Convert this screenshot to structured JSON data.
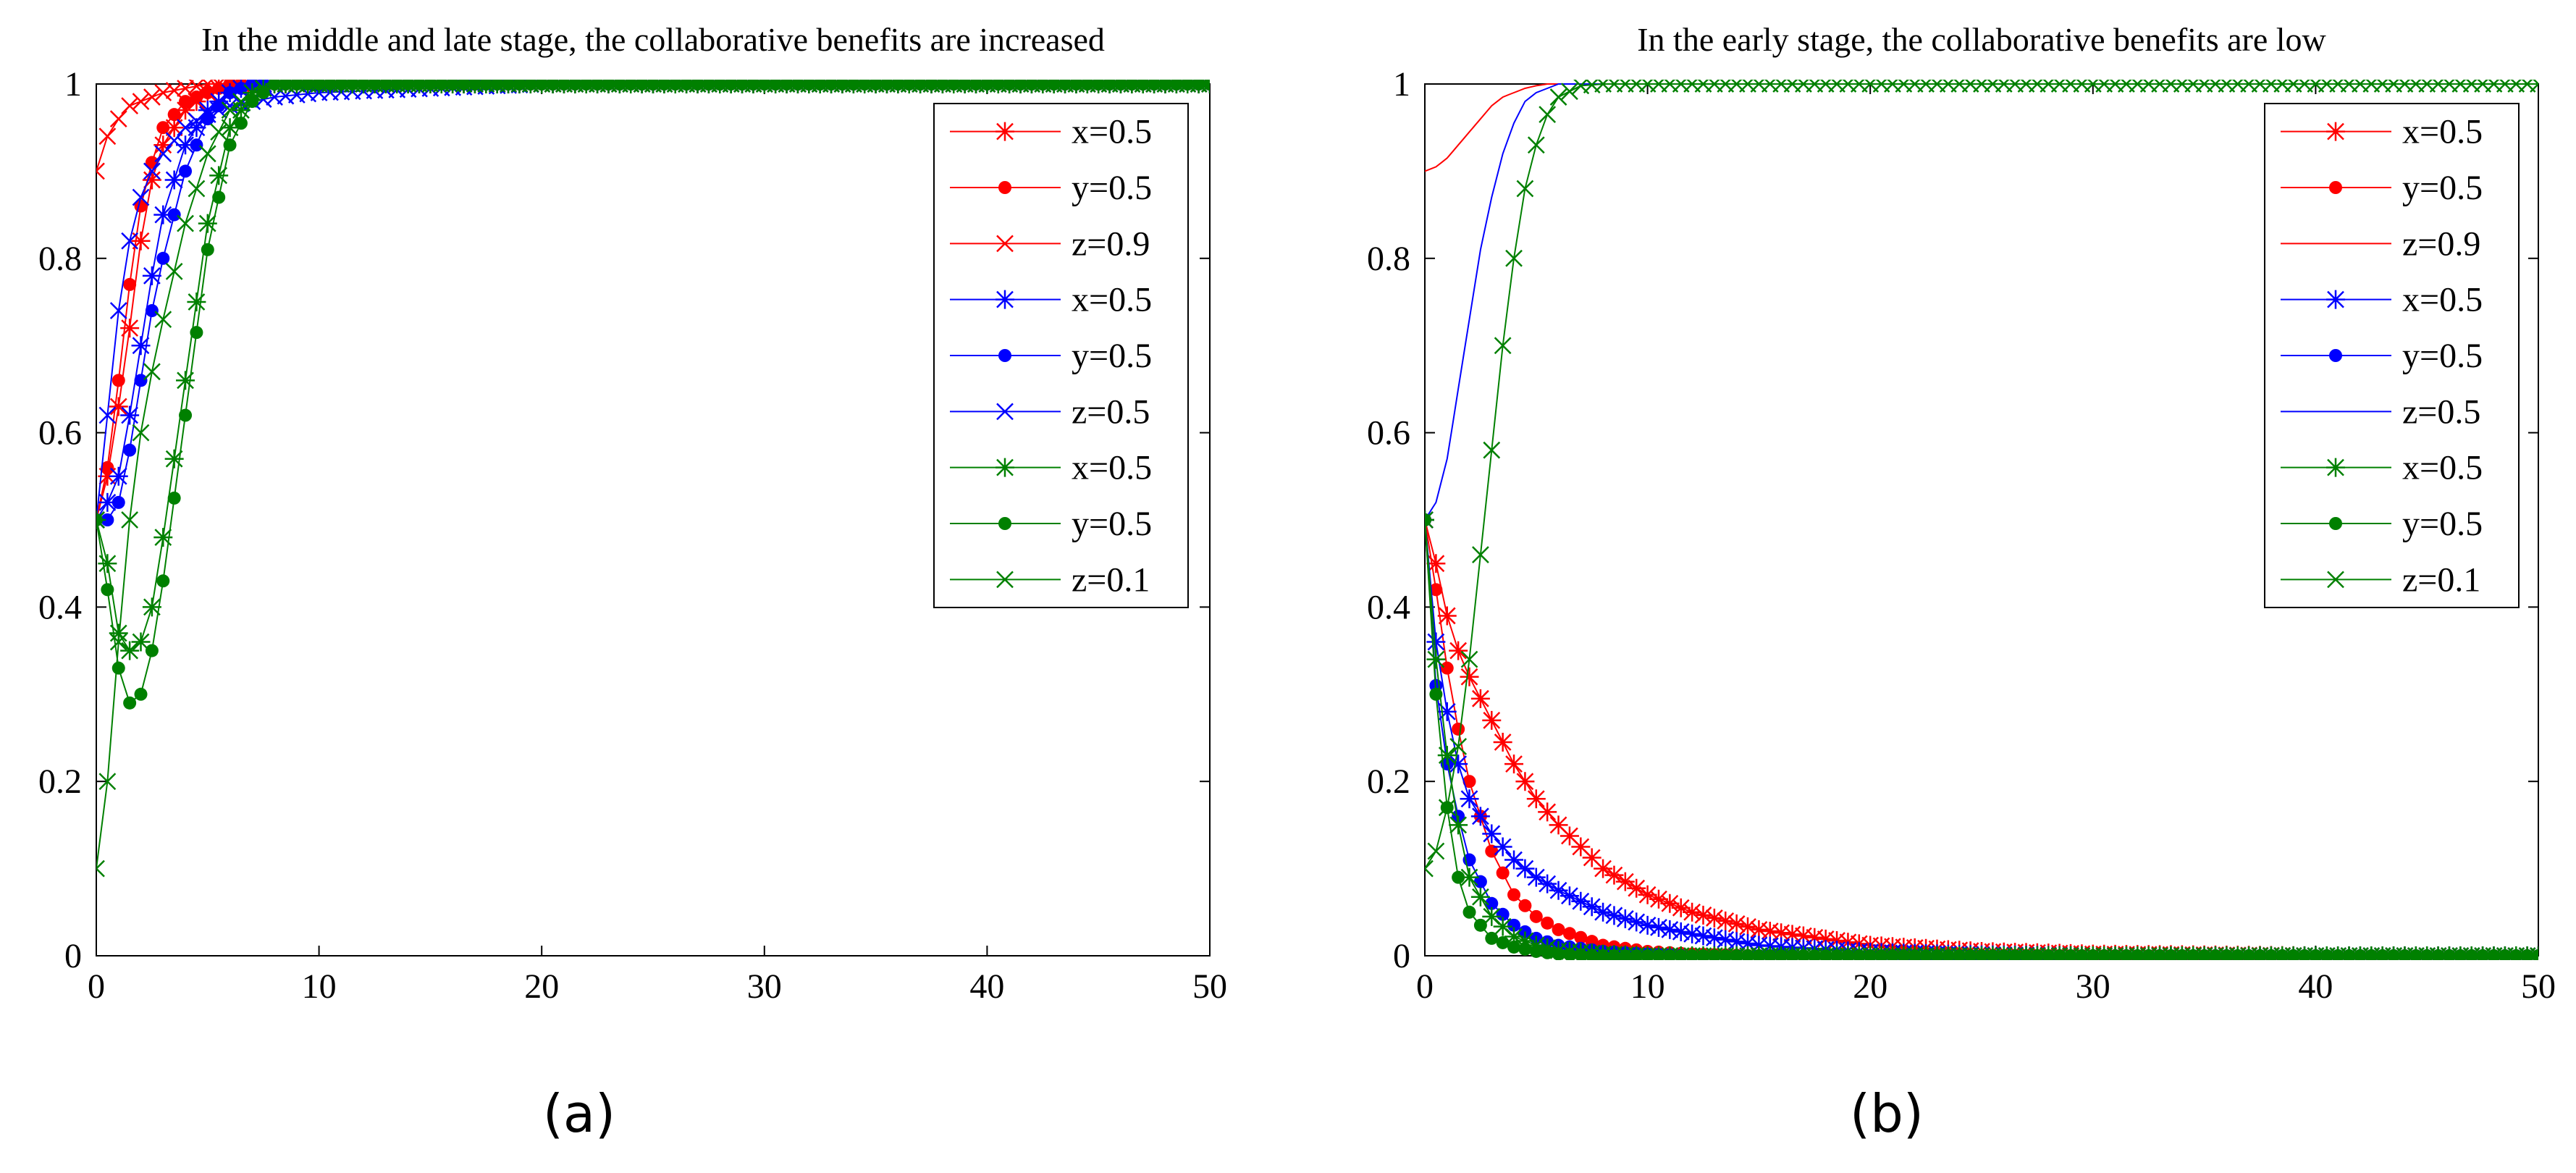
{
  "figure": {
    "subplot_labels": [
      "(a)",
      "(b)"
    ]
  },
  "chart_data": [
    {
      "type": "line",
      "title": "In the middle and late stage, the collaborative benefits are increased",
      "xlabel": "",
      "ylabel": "",
      "xlim": [
        0,
        50
      ],
      "ylim": [
        0,
        1
      ],
      "xticks": [
        0,
        10,
        20,
        30,
        40,
        50
      ],
      "yticks": [
        0,
        0.2,
        0.4,
        0.6,
        0.8,
        1
      ],
      "ytick_labels": [
        "0",
        "0.2",
        "0.4",
        "0.6",
        "0.8",
        "1"
      ],
      "legend_position": "top-right",
      "series": [
        {
          "name": "x=0.5",
          "color": "#ff0000",
          "marker": "asterisk",
          "x": [
            0,
            0.5,
            1,
            1.5,
            2,
            2.5,
            3,
            4,
            5,
            6,
            7,
            8,
            10,
            15,
            20,
            30,
            40,
            50
          ],
          "values": [
            0.5,
            0.55,
            0.63,
            0.72,
            0.82,
            0.89,
            0.93,
            0.97,
            0.99,
            1,
            1,
            1,
            1,
            1,
            1,
            1,
            1,
            1
          ]
        },
        {
          "name": "y=0.5",
          "color": "#ff0000",
          "marker": "dot",
          "x": [
            0,
            0.5,
            1,
            1.5,
            2,
            2.5,
            3,
            4,
            5,
            6,
            7,
            8,
            10,
            15,
            20,
            30,
            40,
            50
          ],
          "values": [
            0.5,
            0.56,
            0.66,
            0.77,
            0.86,
            0.91,
            0.95,
            0.98,
            0.99,
            1,
            1,
            1,
            1,
            1,
            1,
            1,
            1,
            1
          ]
        },
        {
          "name": "z=0.9",
          "color": "#ff0000",
          "marker": "x",
          "x": [
            0,
            0.5,
            1,
            1.5,
            2,
            2.5,
            3,
            4,
            5,
            6,
            7,
            8,
            10,
            15,
            20,
            30,
            40,
            50
          ],
          "values": [
            0.9,
            0.94,
            0.96,
            0.975,
            0.98,
            0.985,
            0.99,
            0.995,
            1,
            1,
            1,
            1,
            1,
            1,
            1,
            1,
            1,
            1
          ]
        },
        {
          "name": "x=0.5",
          "color": "#0000ff",
          "marker": "asterisk",
          "x": [
            0,
            0.5,
            1,
            1.5,
            2,
            2.5,
            3,
            4,
            5,
            6,
            7,
            8,
            10,
            15,
            20,
            30,
            40,
            50
          ],
          "values": [
            0.5,
            0.52,
            0.55,
            0.62,
            0.7,
            0.78,
            0.85,
            0.93,
            0.97,
            0.99,
            1,
            1,
            1,
            1,
            1,
            1,
            1,
            1
          ]
        },
        {
          "name": "y=0.5",
          "color": "#0000ff",
          "marker": "dot",
          "x": [
            0,
            0.5,
            1,
            1.5,
            2,
            2.5,
            3,
            4,
            5,
            6,
            7,
            8,
            10,
            15,
            20,
            30,
            40,
            50
          ],
          "values": [
            0.5,
            0.5,
            0.52,
            0.58,
            0.66,
            0.74,
            0.8,
            0.9,
            0.96,
            0.99,
            1,
            1,
            1,
            1,
            1,
            1,
            1,
            1
          ]
        },
        {
          "name": "z=0.5",
          "color": "#0000ff",
          "marker": "x",
          "x": [
            0,
            0.5,
            1,
            1.5,
            2,
            2.5,
            3,
            4,
            5,
            6,
            7,
            8,
            10,
            15,
            20,
            30,
            40,
            50
          ],
          "values": [
            0.5,
            0.62,
            0.74,
            0.82,
            0.87,
            0.9,
            0.92,
            0.95,
            0.965,
            0.975,
            0.98,
            0.985,
            0.99,
            0.995,
            1,
            1,
            1,
            1
          ]
        },
        {
          "name": "x=0.5",
          "color": "#008000",
          "marker": "asterisk",
          "x": [
            0,
            0.5,
            1,
            1.5,
            2,
            2.5,
            3,
            4,
            5,
            6,
            7,
            8,
            10,
            15,
            20,
            30,
            40,
            50
          ],
          "values": [
            0.5,
            0.45,
            0.37,
            0.35,
            0.36,
            0.4,
            0.48,
            0.66,
            0.84,
            0.95,
            0.99,
            1,
            1,
            1,
            1,
            1,
            1,
            1
          ]
        },
        {
          "name": "y=0.5",
          "color": "#008000",
          "marker": "dot",
          "x": [
            0,
            0.5,
            1,
            1.5,
            2,
            2.5,
            3,
            4,
            5,
            6,
            7,
            8,
            10,
            15,
            20,
            30,
            40,
            50
          ],
          "values": [
            0.5,
            0.42,
            0.33,
            0.29,
            0.3,
            0.35,
            0.43,
            0.62,
            0.81,
            0.93,
            0.98,
            1,
            1,
            1,
            1,
            1,
            1,
            1
          ]
        },
        {
          "name": "z=0.1",
          "color": "#008000",
          "marker": "x",
          "x": [
            0,
            0.5,
            1,
            1.5,
            2,
            2.5,
            3,
            4,
            5,
            6,
            7,
            8,
            10,
            15,
            20,
            30,
            40,
            50
          ],
          "values": [
            0.1,
            0.2,
            0.36,
            0.5,
            0.6,
            0.67,
            0.73,
            0.84,
            0.92,
            0.97,
            0.99,
            1,
            1,
            1,
            1,
            1,
            1,
            1
          ]
        }
      ]
    },
    {
      "type": "line",
      "title": "In the early stage, the collaborative benefits are low",
      "xlabel": "",
      "ylabel": "",
      "xlim": [
        0,
        50
      ],
      "ylim": [
        0,
        1
      ],
      "xticks": [
        0,
        10,
        20,
        30,
        40,
        50
      ],
      "yticks": [
        0,
        0.2,
        0.4,
        0.6,
        0.8,
        1
      ],
      "ytick_labels": [
        "0",
        "0.2",
        "0.4",
        "0.6",
        "0.8",
        "1"
      ],
      "legend_position": "top-right",
      "series": [
        {
          "name": "x=0.5",
          "color": "#ff0000",
          "marker": "asterisk",
          "x": [
            0,
            0.5,
            1,
            1.5,
            2,
            3,
            4,
            5,
            6,
            8,
            10,
            12,
            15,
            20,
            25,
            30,
            40,
            50
          ],
          "values": [
            0.5,
            0.45,
            0.39,
            0.35,
            0.32,
            0.27,
            0.22,
            0.18,
            0.15,
            0.1,
            0.07,
            0.05,
            0.03,
            0.012,
            0.005,
            0.002,
            0,
            0
          ]
        },
        {
          "name": "y=0.5",
          "color": "#ff0000",
          "marker": "dot",
          "x": [
            0,
            0.5,
            1,
            1.5,
            2,
            3,
            4,
            5,
            6,
            8,
            10,
            12,
            15,
            20,
            25,
            30,
            40,
            50
          ],
          "values": [
            0.5,
            0.42,
            0.33,
            0.26,
            0.2,
            0.12,
            0.07,
            0.045,
            0.03,
            0.012,
            0.005,
            0.002,
            0,
            0,
            0,
            0,
            0,
            0
          ]
        },
        {
          "name": "z=0.9",
          "color": "#ff0000",
          "marker": "none",
          "x": [
            0,
            0.5,
            1,
            1.5,
            2,
            2.5,
            3,
            3.5,
            4,
            4.5,
            5,
            5.5,
            6,
            8,
            10,
            20,
            30,
            40,
            50
          ],
          "values": [
            0.9,
            0.905,
            0.915,
            0.93,
            0.945,
            0.96,
            0.975,
            0.985,
            0.99,
            0.995,
            0.998,
            1,
            1,
            1,
            1,
            1,
            1,
            1,
            1
          ]
        },
        {
          "name": "x=0.5",
          "color": "#0000ff",
          "marker": "asterisk",
          "x": [
            0,
            0.5,
            1,
            1.5,
            2,
            3,
            4,
            5,
            6,
            8,
            10,
            12,
            15,
            20,
            25,
            30,
            40,
            50
          ],
          "values": [
            0.5,
            0.36,
            0.28,
            0.22,
            0.18,
            0.14,
            0.11,
            0.09,
            0.075,
            0.05,
            0.035,
            0.025,
            0.012,
            0.004,
            0.001,
            0,
            0,
            0
          ]
        },
        {
          "name": "y=0.5",
          "color": "#0000ff",
          "marker": "dot",
          "x": [
            0,
            0.5,
            1,
            1.5,
            2,
            3,
            4,
            5,
            6,
            8,
            10,
            12,
            15,
            20,
            25,
            30,
            40,
            50
          ],
          "values": [
            0.5,
            0.31,
            0.22,
            0.16,
            0.11,
            0.06,
            0.035,
            0.02,
            0.012,
            0.005,
            0.002,
            0,
            0,
            0,
            0,
            0,
            0,
            0
          ]
        },
        {
          "name": "z=0.5",
          "color": "#0000ff",
          "marker": "none",
          "x": [
            0,
            0.5,
            1,
            1.5,
            2,
            2.5,
            3,
            3.5,
            4,
            4.5,
            5,
            5.5,
            6,
            7,
            8,
            10,
            20,
            30,
            40,
            50
          ],
          "values": [
            0.5,
            0.52,
            0.57,
            0.65,
            0.73,
            0.81,
            0.87,
            0.92,
            0.955,
            0.98,
            0.99,
            0.995,
            1,
            1,
            1,
            1,
            1,
            1,
            1,
            1
          ]
        },
        {
          "name": "x=0.5",
          "color": "#008000",
          "marker": "asterisk",
          "x": [
            0,
            0.5,
            1,
            1.5,
            2,
            3,
            4,
            5,
            6,
            8,
            10,
            12,
            15,
            20,
            25,
            30,
            40,
            50
          ],
          "values": [
            0.5,
            0.34,
            0.23,
            0.15,
            0.09,
            0.045,
            0.022,
            0.012,
            0.006,
            0.002,
            0,
            0,
            0,
            0,
            0,
            0,
            0,
            0
          ]
        },
        {
          "name": "y=0.5",
          "color": "#008000",
          "marker": "dot",
          "x": [
            0,
            0.5,
            1,
            1.5,
            2,
            3,
            4,
            5,
            6,
            8,
            10,
            12,
            15,
            20,
            25,
            30,
            40,
            50
          ],
          "values": [
            0.5,
            0.3,
            0.17,
            0.09,
            0.05,
            0.02,
            0.01,
            0.005,
            0.002,
            0,
            0,
            0,
            0,
            0,
            0,
            0,
            0,
            0
          ]
        },
        {
          "name": "z=0.1",
          "color": "#008000",
          "marker": "x",
          "x": [
            0,
            0.5,
            1,
            1.5,
            2,
            2.5,
            3,
            3.5,
            4,
            4.5,
            5,
            5.5,
            6,
            7,
            8,
            10,
            20,
            30,
            40,
            50
          ],
          "values": [
            0.1,
            0.12,
            0.17,
            0.24,
            0.34,
            0.46,
            0.58,
            0.7,
            0.8,
            0.88,
            0.93,
            0.965,
            0.985,
            0.998,
            1,
            1,
            1,
            1,
            1,
            1
          ]
        }
      ]
    }
  ]
}
